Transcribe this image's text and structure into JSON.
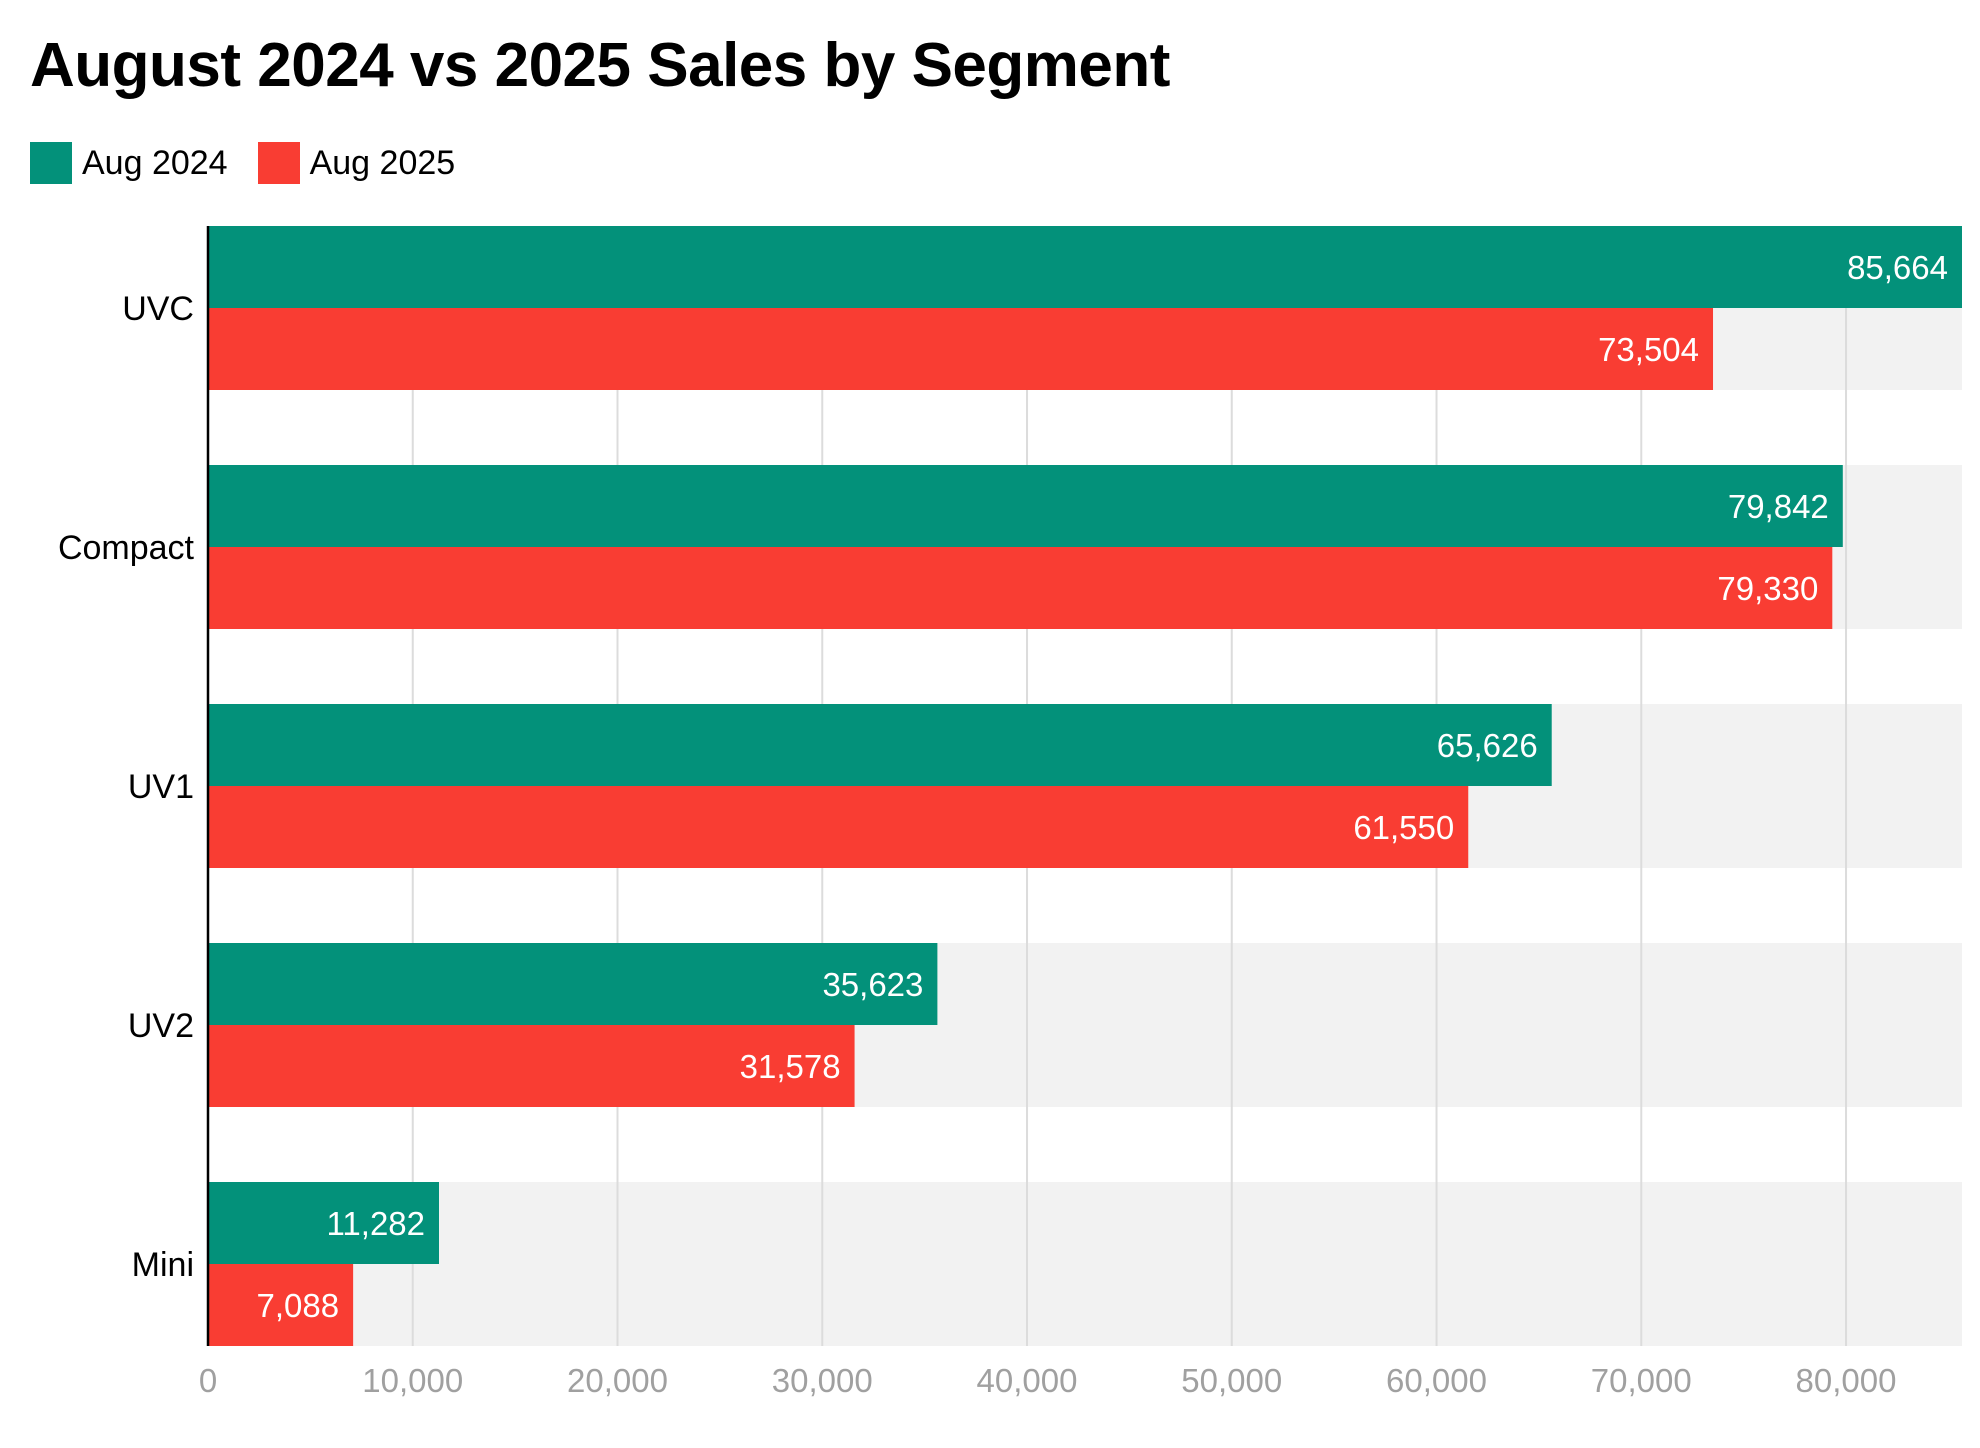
{
  "chart_data": {
    "type": "bar",
    "orientation": "horizontal",
    "title": "August 2024 vs 2025 Sales by Segment",
    "xlabel": "",
    "ylabel": "",
    "categories": [
      "UVC",
      "Compact",
      "UV1",
      "UV2",
      "Mini"
    ],
    "series": [
      {
        "name": "Aug 2024",
        "color": "#03917a",
        "values": [
          85664,
          79842,
          65626,
          35623,
          11282
        ],
        "labels": [
          "85,664",
          "79,842",
          "65,626",
          "35,623",
          "11,282"
        ]
      },
      {
        "name": "Aug 2025",
        "color": "#f93d33",
        "values": [
          73504,
          79330,
          61550,
          31578,
          7088
        ],
        "labels": [
          "73,504",
          "79,330",
          "61,550",
          "31,578",
          "7,088"
        ]
      }
    ],
    "xlim": [
      0,
      85664
    ],
    "xticks": [
      0,
      10000,
      20000,
      30000,
      40000,
      50000,
      60000,
      70000,
      80000
    ],
    "xtick_labels": [
      "0",
      "10,000",
      "20,000",
      "30,000",
      "40,000",
      "50,000",
      "60,000",
      "70,000",
      "80,000"
    ],
    "grid": true,
    "legend_position": "top-left",
    "band_color": "#f2f2f2",
    "grid_color": "#dcdcdc",
    "tick_label_color": "#a0a0a0"
  }
}
